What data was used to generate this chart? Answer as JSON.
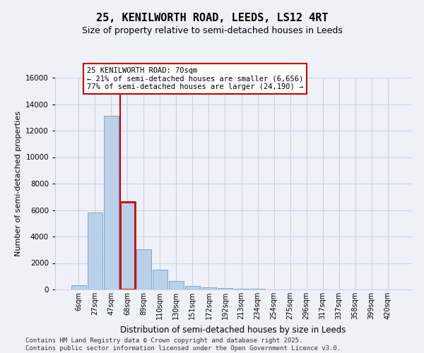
{
  "title_line1": "25, KENILWORTH ROAD, LEEDS, LS12 4RT",
  "title_line2": "Size of property relative to semi-detached houses in Leeds",
  "xlabel": "Distribution of semi-detached houses by size in Leeds",
  "ylabel": "Number of semi-detached properties",
  "categories": [
    "6sqm",
    "27sqm",
    "47sqm",
    "68sqm",
    "89sqm",
    "110sqm",
    "130sqm",
    "151sqm",
    "172sqm",
    "192sqm",
    "213sqm",
    "234sqm",
    "254sqm",
    "275sqm",
    "296sqm",
    "317sqm",
    "337sqm",
    "358sqm",
    "399sqm",
    "420sqm"
  ],
  "values": [
    300,
    5800,
    13100,
    6600,
    3050,
    1480,
    620,
    280,
    160,
    130,
    55,
    40,
    20,
    8,
    5,
    3,
    2,
    1,
    1,
    0
  ],
  "bar_color": "#b8d0e8",
  "bar_edge_color": "#6090c0",
  "highlight_bar_index": 3,
  "highlight_color": "#cc0000",
  "annotation_title": "25 KENILWORTH ROAD: 70sqm",
  "annotation_line1": "← 21% of semi-detached houses are smaller (6,656)",
  "annotation_line2": "77% of semi-detached houses are larger (24,190) →",
  "ylim": [
    0,
    16000
  ],
  "yticks": [
    0,
    2000,
    4000,
    6000,
    8000,
    10000,
    12000,
    14000,
    16000
  ],
  "footer_line1": "Contains HM Land Registry data © Crown copyright and database right 2025.",
  "footer_line2": "Contains public sector information licensed under the Open Government Licence v3.0.",
  "background_color": "#eef2f8",
  "grid_color": "#c8d4e4"
}
